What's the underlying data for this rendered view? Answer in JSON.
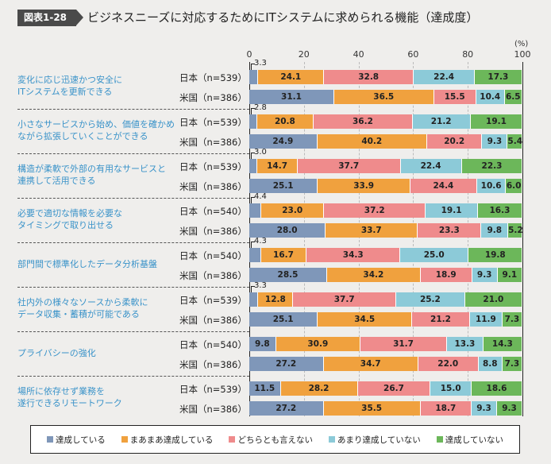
{
  "header": {
    "badge": "図表1-28",
    "title": "ビジネスニーズに対応するためにITシステムに求められる機能（達成度）"
  },
  "chart_data": {
    "type": "bar",
    "orientation": "horizontal-stacked-100",
    "title": "ビジネスニーズに対応するためにITシステムに求められる機能（達成度）",
    "unit": "(%)",
    "xlim": [
      0,
      100
    ],
    "ticks": [
      "0",
      "20",
      "40",
      "60",
      "80",
      "100"
    ],
    "legend_position": "bottom",
    "legend": [
      "達成している",
      "まあまあ達成している",
      "どちらとも言えない",
      "あまり達成していない",
      "達成していない"
    ],
    "colors": [
      "#7f97b9",
      "#f0a13e",
      "#ef8b8c",
      "#8ccad8",
      "#6cb75a"
    ],
    "groups": [
      {
        "label": "変化に応じ迅速かつ安全に\nITシステムを更新できる",
        "rows": [
          {
            "name": "日本（n=539）",
            "values": [
              3.3,
              24.1,
              32.8,
              22.4,
              17.3
            ]
          },
          {
            "name": "米国（n=386）",
            "values": [
              31.1,
              36.5,
              15.5,
              10.4,
              6.5
            ]
          }
        ]
      },
      {
        "label": "小さなサービスから始め、価値を確かめ\nながら拡張していくことができる",
        "rows": [
          {
            "name": "日本（n=539）",
            "values": [
              2.8,
              20.8,
              36.2,
              21.2,
              19.1
            ]
          },
          {
            "name": "米国（n=386）",
            "values": [
              24.9,
              40.2,
              20.2,
              9.3,
              5.4
            ]
          }
        ]
      },
      {
        "label": "構造が柔軟で外部の有用なサービスと\n連携して活用できる",
        "rows": [
          {
            "name": "日本（n=539）",
            "values": [
              3.0,
              14.7,
              37.7,
              22.4,
              22.3
            ]
          },
          {
            "name": "米国（n=386）",
            "values": [
              25.1,
              33.9,
              24.4,
              10.6,
              6.0
            ]
          }
        ]
      },
      {
        "label": "必要で適切な情報を必要な\nタイミングで取り出せる",
        "rows": [
          {
            "name": "日本（n=540）",
            "values": [
              4.4,
              23.0,
              37.2,
              19.1,
              16.3
            ]
          },
          {
            "name": "米国（n=386）",
            "values": [
              28.0,
              33.7,
              23.3,
              9.8,
              5.2
            ]
          }
        ]
      },
      {
        "label": "部門間で標準化したデータ分析基盤",
        "rows": [
          {
            "name": "日本（n=540）",
            "values": [
              4.3,
              16.7,
              34.3,
              25.0,
              19.8
            ]
          },
          {
            "name": "米国（n=386）",
            "values": [
              28.5,
              34.2,
              18.9,
              9.3,
              9.1
            ]
          }
        ]
      },
      {
        "label": "社内外の様々なソースから柔軟に\nデータ収集・蓄積が可能である",
        "rows": [
          {
            "name": "日本（n=539）",
            "values": [
              3.3,
              12.8,
              37.7,
              25.2,
              21.0
            ]
          },
          {
            "name": "米国（n=386）",
            "values": [
              25.1,
              34.5,
              21.2,
              11.9,
              7.3
            ]
          }
        ]
      },
      {
        "label": "プライバシーの強化",
        "rows": [
          {
            "name": "日本（n=540）",
            "values": [
              9.8,
              30.9,
              31.7,
              13.3,
              14.3
            ]
          },
          {
            "name": "米国（n=386）",
            "values": [
              27.2,
              34.7,
              22.0,
              8.8,
              7.3
            ]
          }
        ]
      },
      {
        "label": "場所に依存せず業務を\n遂行できるリモートワーク",
        "rows": [
          {
            "name": "日本（n=539）",
            "values": [
              11.5,
              28.2,
              26.7,
              15.0,
              18.6
            ]
          },
          {
            "name": "米国（n=386）",
            "values": [
              27.2,
              35.5,
              18.7,
              9.3,
              9.3
            ]
          }
        ]
      }
    ]
  }
}
